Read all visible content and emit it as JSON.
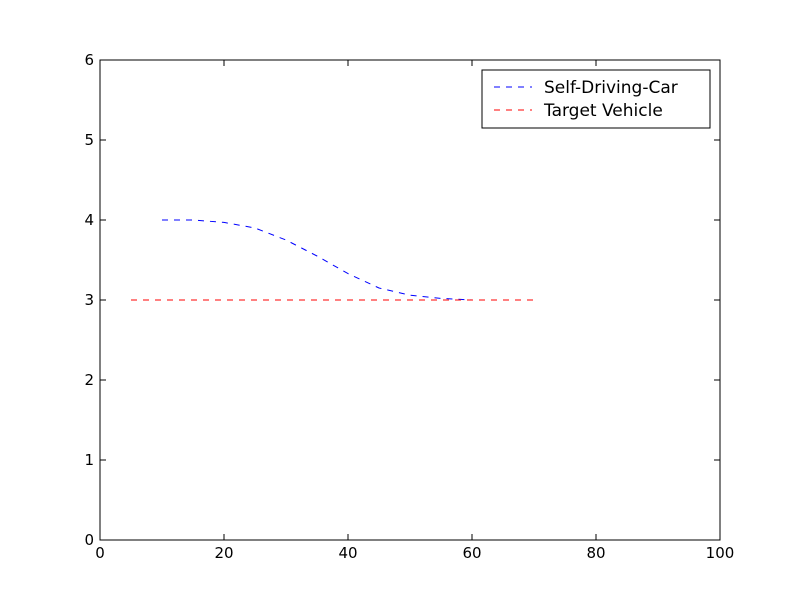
{
  "chart_data": {
    "type": "line",
    "series": [
      {
        "name": "Self-Driving-Car",
        "color": "#0000ff",
        "x": [
          10,
          15,
          20,
          25,
          30,
          35,
          40,
          45,
          50,
          55,
          60
        ],
        "values": [
          4.0,
          4.0,
          3.97,
          3.9,
          3.75,
          3.55,
          3.33,
          3.15,
          3.06,
          3.02,
          3.0
        ]
      },
      {
        "name": "Target Vehicle",
        "color": "#ff0000",
        "x": [
          5,
          70
        ],
        "values": [
          3,
          3
        ]
      }
    ],
    "xlim": [
      0,
      100
    ],
    "xticks": [
      0,
      20,
      40,
      60,
      80,
      100
    ],
    "ylim": [
      0,
      6
    ],
    "yticks": [
      0,
      1,
      2,
      3,
      4,
      5,
      6
    ],
    "legend": "upper right",
    "line_style": "dashed"
  }
}
